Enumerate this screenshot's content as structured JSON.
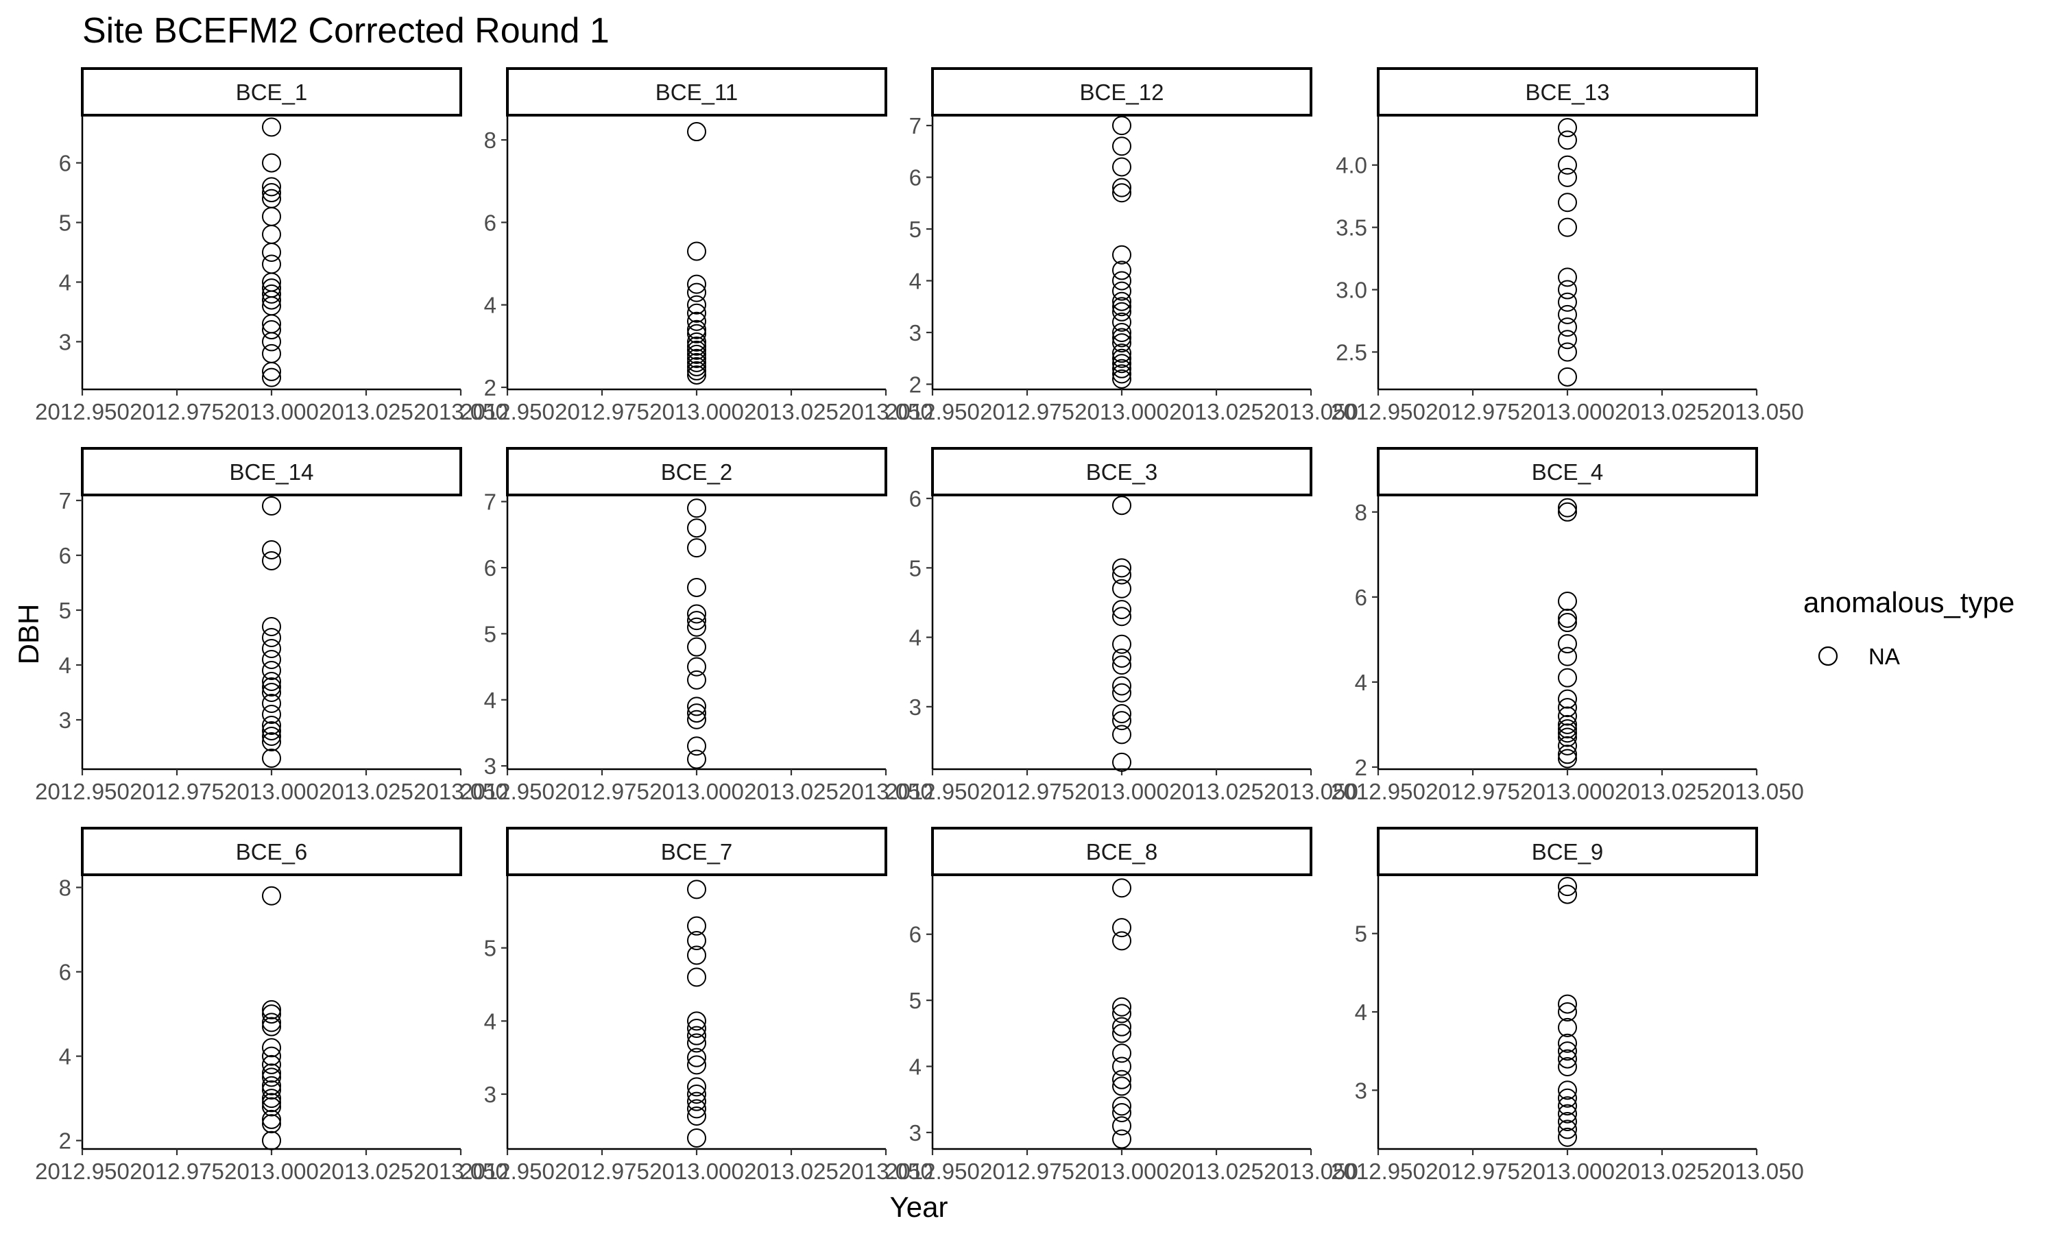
{
  "chart_data": {
    "type": "scatter",
    "title": "Site BCEFM2 Corrected Round 1",
    "xlabel": "Year",
    "ylabel": "DBH",
    "xlim": [
      2012.95,
      2013.05
    ],
    "x_ticks": [
      "2012.950",
      "2012.975",
      "2013.000",
      "2013.025",
      "2013.050"
    ],
    "grid": false,
    "legend": {
      "title": "anomalous_type",
      "entries": [
        "NA"
      ],
      "placement": "right"
    },
    "colors": {
      "point_stroke": "#000000",
      "axis": "#000000",
      "tick_text": "#4d4d4d",
      "strip_fill": "#ffffff"
    },
    "facets": [
      {
        "label": "BCE_1",
        "x": 2013.0,
        "y_ticks": [
          3,
          4,
          5,
          6
        ],
        "ylim": [
          2.2,
          6.8
        ],
        "y": [
          6.6,
          6.0,
          5.6,
          5.5,
          5.4,
          5.1,
          4.8,
          4.5,
          4.3,
          4.0,
          3.9,
          3.8,
          3.7,
          3.6,
          3.3,
          3.2,
          3.0,
          2.8,
          2.5,
          2.4
        ]
      },
      {
        "label": "BCE_11",
        "x": 2013.0,
        "y_ticks": [
          2,
          4,
          6,
          8
        ],
        "ylim": [
          1.95,
          8.6
        ],
        "y": [
          8.2,
          5.3,
          4.5,
          4.3,
          4.0,
          3.8,
          3.6,
          3.4,
          3.3,
          3.1,
          3.0,
          2.9,
          2.8,
          2.7,
          2.6,
          2.5,
          2.4,
          2.3
        ]
      },
      {
        "label": "BCE_12",
        "x": 2013.0,
        "y_ticks": [
          2,
          3,
          4,
          5,
          6,
          7
        ],
        "ylim": [
          1.9,
          7.2
        ],
        "y": [
          7.0,
          6.6,
          6.2,
          5.8,
          5.7,
          4.5,
          4.2,
          4.0,
          3.8,
          3.6,
          3.5,
          3.4,
          3.2,
          3.0,
          2.9,
          2.8,
          2.6,
          2.5,
          2.4,
          2.3,
          2.2,
          2.1
        ]
      },
      {
        "label": "BCE_13",
        "x": 2013.0,
        "y_ticks": [
          "2.5",
          "3.0",
          "3.5",
          "4.0"
        ],
        "ylim": [
          2.2,
          4.4
        ],
        "y": [
          4.3,
          4.2,
          4.0,
          3.9,
          3.7,
          3.5,
          3.1,
          3.0,
          2.9,
          2.8,
          2.7,
          2.6,
          2.5,
          2.3
        ]
      },
      {
        "label": "BCE_14",
        "x": 2013.0,
        "y_ticks": [
          3,
          4,
          5,
          6,
          7
        ],
        "ylim": [
          2.1,
          7.1
        ],
        "y": [
          6.9,
          6.1,
          5.9,
          4.7,
          4.5,
          4.3,
          4.1,
          3.9,
          3.7,
          3.6,
          3.5,
          3.3,
          3.1,
          2.9,
          2.8,
          2.7,
          2.6,
          2.3
        ]
      },
      {
        "label": "BCE_2",
        "x": 2013.0,
        "y_ticks": [
          3,
          4,
          5,
          6,
          7
        ],
        "ylim": [
          2.95,
          7.1
        ],
        "y": [
          6.9,
          6.6,
          6.3,
          5.7,
          5.3,
          5.2,
          5.1,
          4.8,
          4.5,
          4.3,
          3.9,
          3.8,
          3.7,
          3.3,
          3.1
        ]
      },
      {
        "label": "BCE_3",
        "x": 2013.0,
        "y_ticks": [
          3,
          4,
          5,
          6
        ],
        "ylim": [
          2.1,
          6.05
        ],
        "y": [
          5.9,
          5.0,
          4.9,
          4.7,
          4.4,
          4.3,
          3.9,
          3.7,
          3.6,
          3.3,
          3.2,
          2.9,
          2.8,
          2.6,
          2.2
        ]
      },
      {
        "label": "BCE_4",
        "x": 2013.0,
        "y_ticks": [
          2,
          4,
          6,
          8
        ],
        "ylim": [
          1.95,
          8.4
        ],
        "y": [
          8.1,
          8.0,
          5.9,
          5.5,
          5.4,
          4.9,
          4.6,
          4.1,
          3.6,
          3.4,
          3.2,
          3.0,
          2.9,
          2.8,
          2.7,
          2.5,
          2.3,
          2.2
        ]
      },
      {
        "label": "BCE_6",
        "x": 2013.0,
        "y_ticks": [
          2,
          4,
          6,
          8
        ],
        "ylim": [
          1.8,
          8.3
        ],
        "y": [
          7.8,
          5.1,
          5.0,
          4.8,
          4.7,
          4.2,
          4.0,
          3.8,
          3.6,
          3.5,
          3.3,
          3.2,
          3.0,
          2.9,
          2.8,
          2.5,
          2.4,
          2.0
        ]
      },
      {
        "label": "BCE_7",
        "x": 2013.0,
        "y_ticks": [
          3,
          4,
          5
        ],
        "ylim": [
          2.25,
          6.0
        ],
        "y": [
          5.8,
          5.3,
          5.1,
          4.9,
          4.6,
          4.0,
          3.9,
          3.8,
          3.7,
          3.5,
          3.4,
          3.1,
          3.0,
          2.9,
          2.8,
          2.7,
          2.4
        ]
      },
      {
        "label": "BCE_8",
        "x": 2013.0,
        "y_ticks": [
          3,
          4,
          5,
          6
        ],
        "ylim": [
          2.75,
          6.9
        ],
        "y": [
          6.7,
          6.1,
          5.9,
          4.9,
          4.8,
          4.6,
          4.5,
          4.2,
          4.0,
          3.8,
          3.7,
          3.4,
          3.3,
          3.1,
          2.9
        ]
      },
      {
        "label": "BCE_9",
        "x": 2013.0,
        "y_ticks": [
          3,
          4,
          5
        ],
        "ylim": [
          2.25,
          5.75
        ],
        "y": [
          5.6,
          5.5,
          4.1,
          4.0,
          3.8,
          3.6,
          3.5,
          3.4,
          3.3,
          3.0,
          2.9,
          2.8,
          2.7,
          2.6,
          2.5,
          2.4
        ]
      }
    ]
  }
}
